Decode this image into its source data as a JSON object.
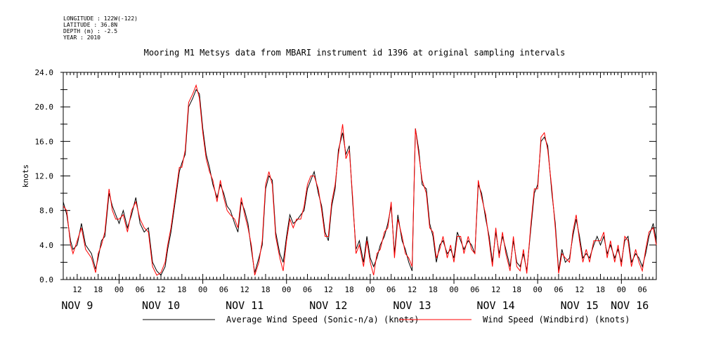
{
  "meta": {
    "longitude": "LONGITUDE : 122W(-122)",
    "latitude": "LATITUDE : 36.8N",
    "depth": "DEPTH (m) : -2.5",
    "year": "YEAR : 2010"
  },
  "colors": {
    "sonic": "#000000",
    "windbird": "#ff0000",
    "axis": "#000000"
  },
  "chart_data": {
    "type": "line",
    "title": "Mooring M1 Metsys data from MBARI instrument id 1396 at original sampling intervals",
    "ylabel": "knots",
    "xlabel": "",
    "ylim": [
      0,
      24
    ],
    "xlim": [
      8.333,
      15.417
    ],
    "x_unit": "days (November 2010)",
    "y_ticks": [
      "0.0",
      "4.0",
      "8.0",
      "12.0",
      "16.0",
      "20.0",
      "24.0"
    ],
    "hour_ticks": [
      {
        "day": 8.5,
        "label": "12"
      },
      {
        "day": 8.75,
        "label": "18"
      },
      {
        "day": 9.0,
        "label": "00"
      },
      {
        "day": 9.25,
        "label": "06"
      },
      {
        "day": 9.5,
        "label": "12"
      },
      {
        "day": 9.75,
        "label": "18"
      },
      {
        "day": 10.0,
        "label": "00"
      },
      {
        "day": 10.25,
        "label": "06"
      },
      {
        "day": 10.5,
        "label": "12"
      },
      {
        "day": 10.75,
        "label": "18"
      },
      {
        "day": 11.0,
        "label": "00"
      },
      {
        "day": 11.25,
        "label": "06"
      },
      {
        "day": 11.5,
        "label": "12"
      },
      {
        "day": 11.75,
        "label": "18"
      },
      {
        "day": 12.0,
        "label": "00"
      },
      {
        "day": 12.25,
        "label": "06"
      },
      {
        "day": 12.5,
        "label": "12"
      },
      {
        "day": 12.75,
        "label": "18"
      },
      {
        "day": 13.0,
        "label": "00"
      },
      {
        "day": 13.25,
        "label": "06"
      },
      {
        "day": 13.5,
        "label": "12"
      },
      {
        "day": 13.75,
        "label": "18"
      },
      {
        "day": 14.0,
        "label": "00"
      },
      {
        "day": 14.25,
        "label": "06"
      },
      {
        "day": 14.5,
        "label": "12"
      },
      {
        "day": 14.75,
        "label": "18"
      },
      {
        "day": 15.0,
        "label": "00"
      },
      {
        "day": 15.25,
        "label": "06"
      }
    ],
    "day_labels": [
      {
        "day": 8.5,
        "label": "NOV  9"
      },
      {
        "day": 9.5,
        "label": "NOV 10"
      },
      {
        "day": 10.5,
        "label": "NOV 11"
      },
      {
        "day": 11.5,
        "label": "NOV 12"
      },
      {
        "day": 12.5,
        "label": "NOV 13"
      },
      {
        "day": 13.5,
        "label": "NOV 14"
      },
      {
        "day": 14.5,
        "label": "NOV 15"
      },
      {
        "day": 15.1,
        "label": "NOV 16"
      }
    ],
    "series": [
      {
        "name": "Average Wind Speed (Sonic-n/a) (knots)",
        "x": [
          8.333,
          8.375,
          8.42,
          8.45,
          8.5,
          8.55,
          8.6,
          8.67,
          8.72,
          8.75,
          8.79,
          8.83,
          8.88,
          8.92,
          8.96,
          9.0,
          9.05,
          9.1,
          9.15,
          9.2,
          9.25,
          9.3,
          9.35,
          9.4,
          9.45,
          9.5,
          9.55,
          9.58,
          9.62,
          9.67,
          9.72,
          9.75,
          9.79,
          9.83,
          9.88,
          9.92,
          9.96,
          10.0,
          10.04,
          10.08,
          10.12,
          10.17,
          10.21,
          10.25,
          10.29,
          10.33,
          10.38,
          10.42,
          10.46,
          10.5,
          10.54,
          10.58,
          10.62,
          10.67,
          10.71,
          10.75,
          10.79,
          10.83,
          10.87,
          10.92,
          10.96,
          11.0,
          11.04,
          11.08,
          11.12,
          11.17,
          11.21,
          11.25,
          11.29,
          11.33,
          11.38,
          11.42,
          11.46,
          11.5,
          11.54,
          11.58,
          11.62,
          11.67,
          11.71,
          11.75,
          11.79,
          11.83,
          11.87,
          11.92,
          11.96,
          12.0,
          12.04,
          12.08,
          12.12,
          12.17,
          12.21,
          12.25,
          12.29,
          12.33,
          12.38,
          12.42,
          12.46,
          12.5,
          12.54,
          12.58,
          12.62,
          12.67,
          12.71,
          12.75,
          12.79,
          12.83,
          12.87,
          12.92,
          12.96,
          13.0,
          13.04,
          13.08,
          13.12,
          13.17,
          13.21,
          13.25,
          13.29,
          13.33,
          13.38,
          13.42,
          13.46,
          13.5,
          13.54,
          13.58,
          13.62,
          13.67,
          13.71,
          13.75,
          13.79,
          13.83,
          13.87,
          13.92,
          13.96,
          14.0,
          14.04,
          14.08,
          14.12,
          14.17,
          14.21,
          14.25,
          14.29,
          14.33,
          14.38,
          14.42,
          14.46,
          14.5,
          14.54,
          14.58,
          14.62,
          14.67,
          14.71,
          14.75,
          14.79,
          14.83,
          14.87,
          14.92,
          14.96,
          15.0,
          15.04,
          15.08,
          15.12,
          15.17,
          15.21,
          15.25,
          15.29,
          15.33,
          15.38,
          15.417
        ],
        "y": [
          9.0,
          7.5,
          4.5,
          3.5,
          4.0,
          6.5,
          4.0,
          3.0,
          1.2,
          2.5,
          4.5,
          5.0,
          10.0,
          8.5,
          7.5,
          6.5,
          8.0,
          6.0,
          7.5,
          9.5,
          6.5,
          5.5,
          6.0,
          2.0,
          1.0,
          0.5,
          1.5,
          3.5,
          5.5,
          9.0,
          12.5,
          13.5,
          14.5,
          20.0,
          21.0,
          22.0,
          21.5,
          17.5,
          14.5,
          13.0,
          11.0,
          9.5,
          11.0,
          10.0,
          8.5,
          8.0,
          6.5,
          5.5,
          9.0,
          8.0,
          6.5,
          3.5,
          0.8,
          2.5,
          4.0,
          10.5,
          12.0,
          11.5,
          5.5,
          3.0,
          2.0,
          5.0,
          7.5,
          6.5,
          6.8,
          7.5,
          8.0,
          10.5,
          11.5,
          12.5,
          10.0,
          8.5,
          5.5,
          4.5,
          8.5,
          10.5,
          15.0,
          17.0,
          14.5,
          15.5,
          9.0,
          3.5,
          4.5,
          2.0,
          5.0,
          2.5,
          1.5,
          2.5,
          4.0,
          5.0,
          6.5,
          8.5,
          3.0,
          7.5,
          4.5,
          3.5,
          2.0,
          1.0,
          17.5,
          15.0,
          11.0,
          10.5,
          6.5,
          5.0,
          2.0,
          4.0,
          4.5,
          3.0,
          3.5,
          2.5,
          5.5,
          4.5,
          3.5,
          4.5,
          4.0,
          3.0,
          11.0,
          10.0,
          7.0,
          5.0,
          2.0,
          5.5,
          3.0,
          5.0,
          3.5,
          1.5,
          4.5,
          2.0,
          1.5,
          3.0,
          1.0,
          6.0,
          10.0,
          11.0,
          16.0,
          16.5,
          15.5,
          10.0,
          6.5,
          1.0,
          3.5,
          2.0,
          2.5,
          5.0,
          7.0,
          5.0,
          2.5,
          3.0,
          2.5,
          4.0,
          5.0,
          4.0,
          5.0,
          3.0,
          4.0,
          2.5,
          3.5,
          2.0,
          4.5,
          5.0,
          2.0,
          3.0,
          2.5,
          1.5,
          3.0,
          5.0,
          6.5,
          4.5
        ]
      },
      {
        "name": "Wind Speed (Windbird) (knots)",
        "x": [
          8.333,
          8.375,
          8.42,
          8.45,
          8.5,
          8.55,
          8.6,
          8.67,
          8.72,
          8.75,
          8.79,
          8.83,
          8.88,
          8.92,
          8.96,
          9.0,
          9.05,
          9.1,
          9.15,
          9.2,
          9.25,
          9.3,
          9.35,
          9.4,
          9.45,
          9.5,
          9.55,
          9.58,
          9.62,
          9.67,
          9.72,
          9.75,
          9.79,
          9.83,
          9.88,
          9.92,
          9.96,
          10.0,
          10.04,
          10.08,
          10.12,
          10.17,
          10.21,
          10.25,
          10.29,
          10.33,
          10.38,
          10.42,
          10.46,
          10.5,
          10.54,
          10.58,
          10.62,
          10.67,
          10.71,
          10.75,
          10.79,
          10.83,
          10.87,
          10.92,
          10.96,
          11.0,
          11.04,
          11.08,
          11.12,
          11.17,
          11.21,
          11.25,
          11.29,
          11.33,
          11.38,
          11.42,
          11.46,
          11.5,
          11.54,
          11.58,
          11.62,
          11.67,
          11.71,
          11.75,
          11.79,
          11.83,
          11.87,
          11.92,
          11.96,
          12.0,
          12.04,
          12.08,
          12.12,
          12.17,
          12.21,
          12.25,
          12.29,
          12.33,
          12.38,
          12.42,
          12.46,
          12.5,
          12.54,
          12.58,
          12.62,
          12.67,
          12.71,
          12.75,
          12.79,
          12.83,
          12.87,
          12.92,
          12.96,
          13.0,
          13.04,
          13.08,
          13.12,
          13.17,
          13.21,
          13.25,
          13.29,
          13.33,
          13.38,
          13.42,
          13.46,
          13.5,
          13.54,
          13.58,
          13.62,
          13.67,
          13.71,
          13.75,
          13.79,
          13.83,
          13.87,
          13.92,
          13.96,
          14.0,
          14.04,
          14.08,
          14.12,
          14.17,
          14.21,
          14.25,
          14.29,
          14.33,
          14.38,
          14.42,
          14.46,
          14.5,
          14.54,
          14.58,
          14.62,
          14.67,
          14.71,
          14.75,
          14.79,
          14.83,
          14.87,
          14.92,
          14.96,
          15.0,
          15.04,
          15.08,
          15.12,
          15.17,
          15.21,
          15.25,
          15.29,
          15.33,
          15.38,
          15.417
        ],
        "y": [
          8.5,
          8.0,
          4.0,
          3.0,
          4.5,
          6.0,
          3.5,
          2.5,
          0.8,
          3.0,
          4.0,
          5.5,
          10.5,
          8.0,
          7.0,
          7.0,
          7.5,
          5.5,
          8.0,
          9.0,
          7.0,
          6.0,
          5.5,
          1.5,
          0.5,
          0.8,
          2.0,
          4.0,
          6.0,
          9.5,
          13.0,
          13.0,
          15.0,
          20.5,
          21.5,
          22.5,
          21.0,
          17.0,
          14.0,
          12.5,
          11.5,
          9.0,
          11.5,
          9.5,
          8.0,
          7.5,
          7.0,
          6.0,
          9.5,
          7.5,
          6.0,
          4.0,
          0.5,
          2.0,
          4.5,
          11.0,
          12.5,
          11.0,
          5.0,
          2.5,
          1.0,
          4.5,
          7.0,
          6.0,
          7.0,
          7.0,
          8.5,
          11.0,
          12.0,
          12.0,
          10.5,
          8.0,
          5.0,
          5.0,
          9.0,
          11.0,
          14.5,
          18.0,
          14.0,
          15.0,
          9.5,
          3.0,
          4.0,
          1.5,
          4.5,
          2.0,
          0.5,
          3.0,
          3.5,
          5.5,
          6.0,
          9.0,
          2.5,
          7.0,
          5.0,
          3.0,
          2.5,
          1.5,
          17.5,
          14.5,
          11.5,
          10.0,
          6.0,
          5.5,
          2.5,
          3.5,
          5.0,
          2.5,
          4.0,
          2.0,
          5.0,
          5.0,
          3.0,
          5.0,
          3.5,
          3.0,
          11.5,
          9.5,
          7.5,
          4.5,
          1.5,
          6.0,
          2.5,
          5.5,
          3.0,
          1.0,
          5.0,
          1.5,
          1.0,
          3.5,
          0.7,
          6.5,
          10.5,
          10.5,
          16.5,
          17.0,
          15.0,
          10.5,
          6.0,
          0.7,
          3.0,
          2.5,
          2.0,
          5.5,
          7.5,
          4.5,
          2.0,
          3.5,
          2.0,
          4.5,
          4.5,
          4.5,
          5.5,
          2.5,
          4.5,
          2.0,
          4.0,
          1.5,
          5.0,
          4.5,
          1.5,
          3.5,
          2.0,
          1.0,
          3.5,
          5.5,
          6.0,
          4.0
        ]
      }
    ]
  }
}
